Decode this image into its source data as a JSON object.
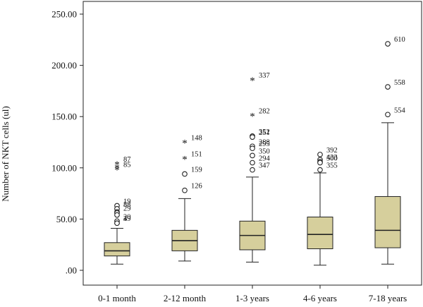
{
  "chart_data": {
    "type": "box",
    "ylabel": "Number of NKT cells (ul)",
    "xlabel": "",
    "ylim": [
      0,
      250
    ],
    "yticks": [
      0,
      50,
      100,
      150,
      200,
      250
    ],
    "ytick_labels": [
      ".00",
      "50.00",
      "100.00",
      "150.00",
      "200.00",
      "250.00"
    ],
    "grid": false,
    "box_color": "#d6cf9c",
    "categories": [
      "0-1 month",
      "2-12 month",
      "1-3 years",
      "4-6 years",
      "7-18 years"
    ],
    "boxes": [
      {
        "category": "0-1 month",
        "whisker_low": 6,
        "q1": 14,
        "median": 19,
        "q3": 27,
        "whisker_high": 41,
        "outliers": [
          {
            "value": 63,
            "label": "19",
            "symbol": "circle"
          },
          {
            "value": 60,
            "label": "88",
            "symbol": "circle"
          },
          {
            "value": 57,
            "label": "",
            "symbol": "circle"
          },
          {
            "value": 56,
            "label": "29",
            "symbol": "circle"
          },
          {
            "value": 54,
            "label": "",
            "symbol": "circle"
          },
          {
            "value": 48,
            "label": "20",
            "symbol": "circle"
          },
          {
            "value": 46,
            "label": "4",
            "symbol": "circle"
          },
          {
            "value": 46,
            "label": "39",
            "symbol": "circle"
          },
          {
            "value": 104,
            "label": "87",
            "symbol": "star"
          },
          {
            "value": 101,
            "label": "",
            "symbol": "star"
          },
          {
            "value": 99,
            "label": "85",
            "symbol": "star"
          }
        ]
      },
      {
        "category": "2-12 month",
        "whisker_low": 9,
        "q1": 19,
        "median": 29,
        "q3": 39,
        "whisker_high": 70,
        "outliers": [
          {
            "value": 125,
            "label": "148",
            "symbol": "star"
          },
          {
            "value": 109,
            "label": "151",
            "symbol": "star"
          },
          {
            "value": 94,
            "label": "159",
            "symbol": "circle"
          },
          {
            "value": 78,
            "label": "126",
            "symbol": "circle"
          }
        ]
      },
      {
        "category": "1-3 years",
        "whisker_low": 8,
        "q1": 20,
        "median": 34,
        "q3": 48,
        "whisker_high": 91,
        "outliers": [
          {
            "value": 186,
            "label": "337",
            "symbol": "star"
          },
          {
            "value": 151,
            "label": "282",
            "symbol": "star"
          },
          {
            "value": 131,
            "label": "352",
            "symbol": "circle"
          },
          {
            "value": 130,
            "label": "251",
            "symbol": "circle"
          },
          {
            "value": 121,
            "label": "288",
            "symbol": "circle"
          },
          {
            "value": 119,
            "label": "295",
            "symbol": "circle"
          },
          {
            "value": 112,
            "label": "350",
            "symbol": "circle"
          },
          {
            "value": 105,
            "label": "294",
            "symbol": "circle"
          },
          {
            "value": 98,
            "label": "347",
            "symbol": "circle"
          }
        ]
      },
      {
        "category": "4-6 years",
        "whisker_low": 5,
        "q1": 21,
        "median": 35,
        "q3": 52,
        "whisker_high": 95,
        "outliers": [
          {
            "value": 113,
            "label": "392",
            "symbol": "circle"
          },
          {
            "value": 108,
            "label": "",
            "symbol": "circle"
          },
          {
            "value": 106,
            "label": "433",
            "symbol": "circle"
          },
          {
            "value": 105,
            "label": "500",
            "symbol": "circle"
          },
          {
            "value": 98,
            "label": "355",
            "symbol": "circle"
          }
        ]
      },
      {
        "category": "7-18 years",
        "whisker_low": 6,
        "q1": 22,
        "median": 39,
        "q3": 72,
        "whisker_high": 144,
        "outliers": [
          {
            "value": 221,
            "label": "610",
            "symbol": "circle"
          },
          {
            "value": 179,
            "label": "558",
            "symbol": "circle"
          },
          {
            "value": 152,
            "label": "554",
            "symbol": "circle"
          }
        ]
      }
    ]
  }
}
